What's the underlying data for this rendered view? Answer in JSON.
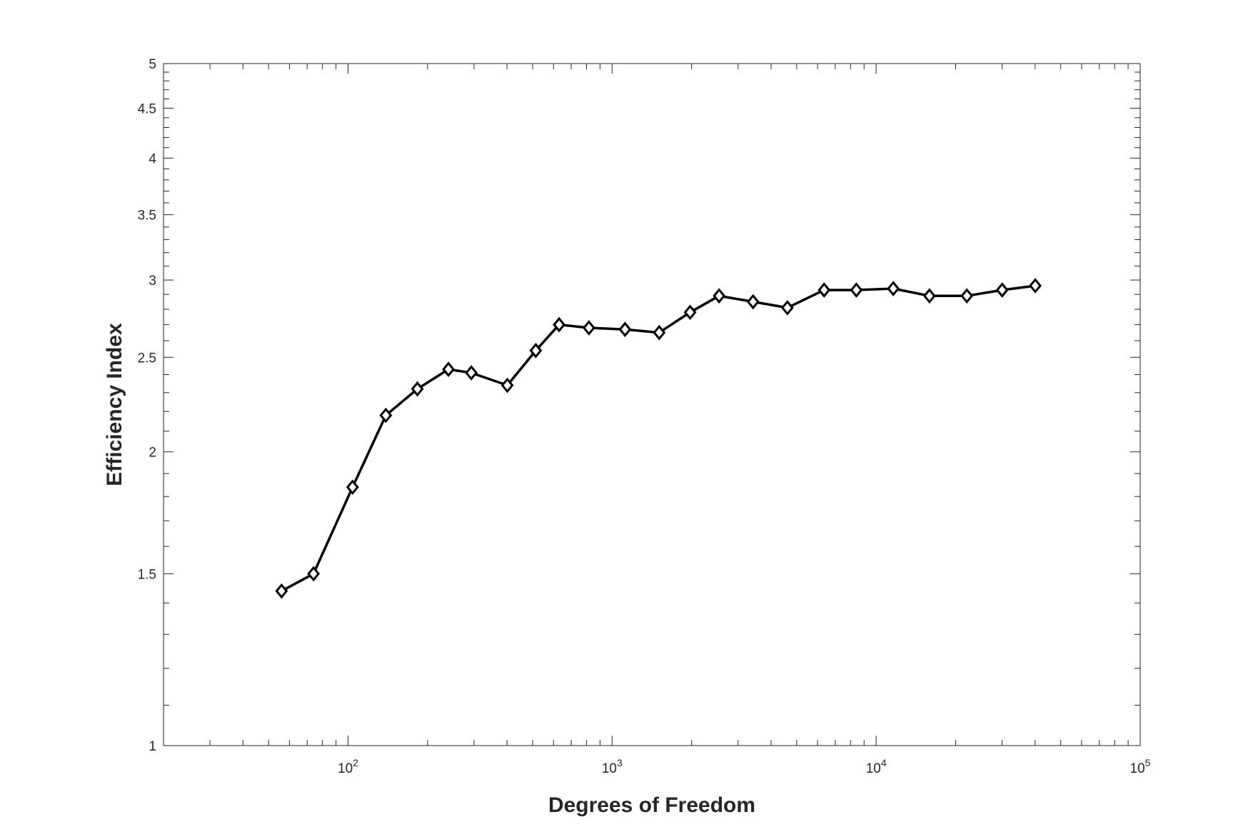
{
  "chart_data": {
    "type": "line",
    "title": "",
    "xlabel": "Degrees of Freedom",
    "ylabel": "Efficiency Index",
    "xscale": "log",
    "yscale": "log",
    "xlim": [
      20,
      100000
    ],
    "ylim": [
      1,
      5
    ],
    "grid": false,
    "legend": "none",
    "x_ticks": [
      100,
      1000,
      10000,
      100000
    ],
    "x_tick_labels": [
      {
        "base": "10",
        "exp": "2"
      },
      {
        "base": "10",
        "exp": "3"
      },
      {
        "base": "10",
        "exp": "4"
      },
      {
        "base": "10",
        "exp": "5"
      }
    ],
    "y_ticks": [
      1,
      1.5,
      2,
      2.5,
      3,
      3.5,
      4,
      4.5,
      5
    ],
    "y_tick_labels": [
      "1",
      "1.5",
      "2",
      "2.5",
      "3",
      "3.5",
      "4",
      "4.5",
      "5"
    ],
    "series": [
      {
        "marker": "diamond",
        "color": "#000000",
        "x": [
          56,
          74,
          104,
          139,
          183,
          240,
          293,
          401,
          514,
          630,
          817,
          1119,
          1508,
          1974,
          2542,
          3418,
          4612,
          6353,
          8413,
          11613,
          15920,
          22057,
          30011,
          40050
        ],
        "y": [
          1.44,
          1.5,
          1.84,
          2.18,
          2.32,
          2.43,
          2.41,
          2.34,
          2.54,
          2.7,
          2.68,
          2.67,
          2.65,
          2.78,
          2.89,
          2.85,
          2.81,
          2.93,
          2.93,
          2.94,
          2.89,
          2.89,
          2.93,
          2.96
        ]
      }
    ]
  },
  "colors": {
    "axis": "#262626",
    "line": "#000000",
    "background": "#ffffff"
  }
}
